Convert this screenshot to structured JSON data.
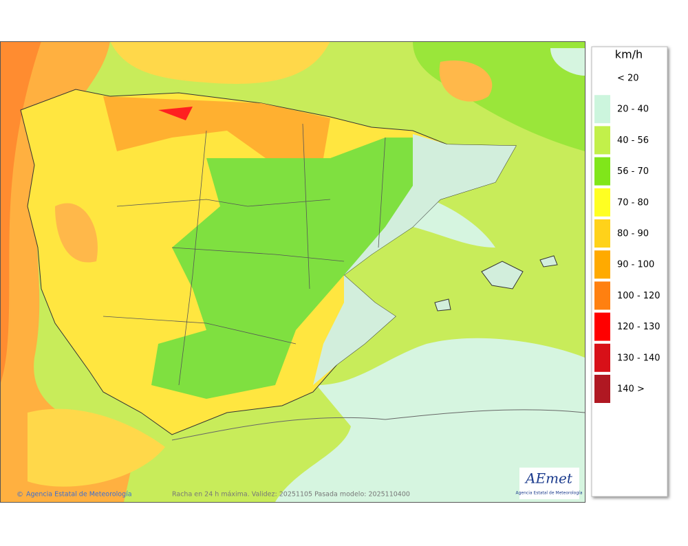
{
  "legend": {
    "title": "km/h",
    "items": [
      {
        "label": "< 20",
        "color": "#ffffff"
      },
      {
        "label": "20 - 40",
        "color": "#ccf5dd"
      },
      {
        "label": "40 - 56",
        "color": "#c2f04a"
      },
      {
        "label": "56 - 70",
        "color": "#80e61a"
      },
      {
        "label": "70 - 80",
        "color": "#ffff22"
      },
      {
        "label": "80 - 90",
        "color": "#ffd21a"
      },
      {
        "label": "90 - 100",
        "color": "#ffaa00"
      },
      {
        "label": "100 - 120",
        "color": "#ff8010"
      },
      {
        "label": "120 - 130",
        "color": "#ff0000"
      },
      {
        "label": "130 - 140",
        "color": "#d81018"
      },
      {
        "label": "140 >",
        "color": "#b01822"
      }
    ]
  },
  "footer": {
    "credit": "Agencia Estatal de Meteorología",
    "caption": "Racha en 24 h máxima. Validez: 20251105 Pasada modelo: 2025110400"
  },
  "logo": {
    "name": "AEmet",
    "subtitle": "Agencia Estatal de Meteorología"
  }
}
